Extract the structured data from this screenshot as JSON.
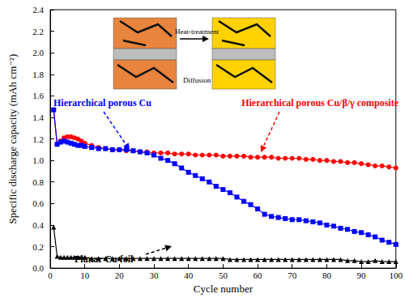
{
  "chart_data": {
    "type": "line",
    "x_label": "Cycle number",
    "y_label": "Specific discharge capacity (mAh cm⁻²)",
    "xlim": [
      0,
      100
    ],
    "xticks": [
      0,
      10,
      20,
      30,
      40,
      50,
      60,
      70,
      80,
      90,
      100
    ],
    "ylim": [
      0,
      2.4
    ],
    "yticks": [
      {
        "value": 0,
        "label": "0.0"
      },
      0.2,
      0.4,
      0.6,
      0.8,
      {
        "value": 1,
        "label": "1.0"
      },
      1.2,
      1.4,
      1.6,
      1.8,
      {
        "value": 2,
        "label": "2.0"
      },
      2.2,
      2.4
    ],
    "annotations": [
      "Heat-treatment",
      "Diffusion"
    ],
    "x": [
      1,
      2,
      3,
      4,
      5,
      6,
      7,
      8,
      9,
      10,
      12,
      14,
      16,
      18,
      20,
      22,
      24,
      26,
      28,
      30,
      32,
      34,
      36,
      38,
      40,
      42,
      44,
      46,
      48,
      50,
      52,
      54,
      56,
      58,
      60,
      62,
      64,
      66,
      68,
      70,
      72,
      74,
      76,
      78,
      80,
      82,
      84,
      86,
      88,
      90,
      92,
      94,
      96,
      98,
      100
    ],
    "series": [
      {
        "name": "Hierarchical porous Cu/β/γ composite",
        "color": "#ff0000",
        "marker": "circle",
        "values": [
          1.47,
          1.15,
          1.18,
          1.21,
          1.22,
          1.22,
          1.21,
          1.2,
          1.18,
          1.16,
          1.14,
          1.12,
          1.11,
          1.1,
          1.1,
          1.09,
          1.09,
          1.08,
          1.08,
          1.07,
          1.07,
          1.07,
          1.06,
          1.06,
          1.06,
          1.05,
          1.05,
          1.05,
          1.05,
          1.04,
          1.04,
          1.04,
          1.04,
          1.03,
          1.03,
          1.03,
          1.03,
          1.02,
          1.02,
          1.02,
          1.02,
          1.01,
          1.01,
          1.0,
          1.0,
          0.99,
          0.99,
          0.98,
          0.98,
          0.97,
          0.96,
          0.95,
          0.95,
          0.94,
          0.93
        ]
      },
      {
        "name": "Hierarchical porous Cu",
        "color": "#0000ff",
        "marker": "square",
        "values": [
          1.47,
          1.15,
          1.17,
          1.18,
          1.17,
          1.16,
          1.15,
          1.14,
          1.14,
          1.13,
          1.12,
          1.11,
          1.11,
          1.1,
          1.1,
          1.1,
          1.09,
          1.08,
          1.07,
          1.05,
          1.02,
          1.0,
          0.97,
          0.93,
          0.89,
          0.86,
          0.83,
          0.8,
          0.76,
          0.73,
          0.7,
          0.66,
          0.62,
          0.59,
          0.55,
          0.5,
          0.48,
          0.47,
          0.46,
          0.45,
          0.45,
          0.44,
          0.43,
          0.42,
          0.4,
          0.39,
          0.37,
          0.36,
          0.34,
          0.33,
          0.31,
          0.29,
          0.26,
          0.24,
          0.22
        ]
      },
      {
        "name": "Planar Cu foil",
        "color": "#000000",
        "marker": "triangle",
        "values": [
          0.38,
          0.11,
          0.1,
          0.1,
          0.1,
          0.1,
          0.1,
          0.1,
          0.1,
          0.1,
          0.09,
          0.09,
          0.09,
          0.09,
          0.09,
          0.09,
          0.09,
          0.09,
          0.09,
          0.09,
          0.09,
          0.09,
          0.09,
          0.09,
          0.09,
          0.09,
          0.09,
          0.09,
          0.09,
          0.09,
          0.08,
          0.08,
          0.08,
          0.08,
          0.08,
          0.08,
          0.08,
          0.08,
          0.08,
          0.08,
          0.08,
          0.08,
          0.08,
          0.08,
          0.08,
          0.08,
          0.08,
          0.07,
          0.07,
          0.06,
          0.06,
          0.07,
          0.06,
          0.06,
          0.06
        ]
      }
    ]
  }
}
